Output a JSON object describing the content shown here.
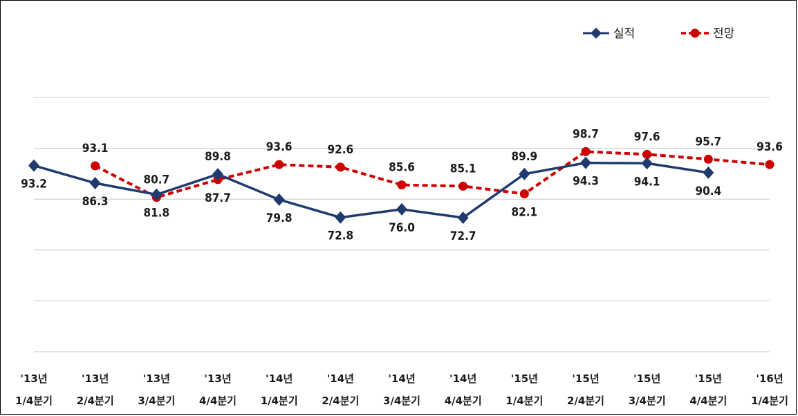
{
  "chart_data": {
    "type": "line",
    "categories": [
      [
        "'13년",
        "1/4분기"
      ],
      [
        "'13년",
        "2/4분기"
      ],
      [
        "'13년",
        "3/4분기"
      ],
      [
        "'13년",
        "4/4분기"
      ],
      [
        "'14년",
        "1/4분기"
      ],
      [
        "'14년",
        "2/4분기"
      ],
      [
        "'14년",
        "3/4분기"
      ],
      [
        "'14년",
        "4/4분기"
      ],
      [
        "'15년",
        "1/4분기"
      ],
      [
        "'15년",
        "2/4분기"
      ],
      [
        "'15년",
        "3/4분기"
      ],
      [
        "'15년",
        "4/4분기"
      ],
      [
        "'16년",
        "1/4분기"
      ]
    ],
    "series": [
      {
        "name": "실적",
        "color": "#1f3a6e",
        "style": "solid",
        "marker": "diamond",
        "values": [
          93.2,
          86.3,
          81.8,
          89.8,
          79.8,
          72.8,
          76.0,
          72.7,
          89.9,
          94.3,
          94.1,
          90.4,
          null
        ],
        "labels": [
          "93.2",
          "86.3",
          "81.8",
          "89.8",
          "79.8",
          "72.8",
          "76.0",
          "72.7",
          "89.9",
          "94.3",
          "94.1",
          "90.4",
          ""
        ],
        "label_pos": [
          "below",
          "below",
          "below",
          "above",
          "below",
          "below",
          "below",
          "below",
          "above",
          "below",
          "below",
          "below",
          "none"
        ]
      },
      {
        "name": "전망",
        "color": "#cc0000",
        "style": "dashed",
        "marker": "circle",
        "values": [
          null,
          93.1,
          80.7,
          87.7,
          93.6,
          92.6,
          85.6,
          85.1,
          82.1,
          98.7,
          97.6,
          95.7,
          93.6
        ],
        "labels": [
          "",
          "93.1",
          "80.7",
          "87.7",
          "93.6",
          "92.6",
          "85.6",
          "85.1",
          "82.1",
          "98.7",
          "97.6",
          "95.7",
          "93.6"
        ],
        "label_pos": [
          "none",
          "above",
          "above",
          "below",
          "above",
          "above",
          "above",
          "above",
          "below",
          "above",
          "above",
          "above",
          "above"
        ]
      }
    ],
    "ylim": [
      20,
      120
    ],
    "grid": true,
    "legend": "top-right",
    "title": "",
    "xlabel": "",
    "ylabel": ""
  }
}
